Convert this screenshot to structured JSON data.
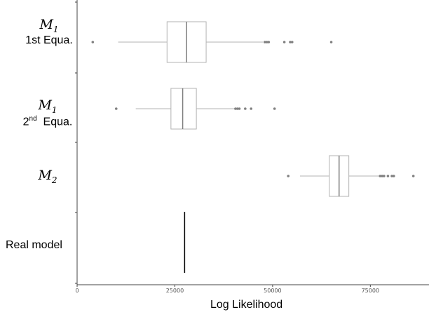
{
  "chart_data": {
    "type": "boxplot",
    "xlabel": "Log Likelihood",
    "xlim": [
      0,
      90000
    ],
    "xticks": [
      0,
      25000,
      50000,
      75000
    ],
    "xtick_labels": [
      "0",
      "25000",
      "50000",
      "75000"
    ],
    "categories": [
      {
        "id": "m1_first",
        "label_main": "M",
        "label_sub": "1",
        "label_line2_pre": "1st Equa.",
        "label_line2_sup": "",
        "label_line2_post": "",
        "box": {
          "q1": 23000,
          "median": 28000,
          "q3": 33000,
          "whisker_low": 10500,
          "whisker_high": 47500
        },
        "outliers": [
          4000,
          48000,
          48500,
          49000,
          53000,
          54500,
          55000,
          65000
        ]
      },
      {
        "id": "m1_second",
        "label_main": "M",
        "label_sub": "1",
        "label_line2_pre": "2",
        "label_line2_sup": "nd",
        "label_line2_post": "  Equa.",
        "box": {
          "q1": 24000,
          "median": 27000,
          "q3": 30500,
          "whisker_low": 15000,
          "whisker_high": 40500
        },
        "outliers": [
          10000,
          40500,
          41000,
          41500,
          43000,
          44500,
          50500
        ]
      },
      {
        "id": "m2",
        "label_main": "M",
        "label_sub": "2",
        "label_line2_pre": "",
        "label_line2_sup": "",
        "label_line2_post": "",
        "box": {
          "q1": 64500,
          "median": 67000,
          "q3": 69500,
          "whisker_low": 57000,
          "whisker_high": 77500
        },
        "outliers": [
          54000,
          77500,
          78000,
          78500,
          79500,
          80500,
          81000,
          86000
        ]
      },
      {
        "id": "real_model",
        "label_text": "Real model",
        "line_value": 27500
      }
    ],
    "colors": {
      "box_stroke": "#b3b3b3",
      "outlier": "#808080",
      "real_line": "#000000",
      "axis": "#444444"
    }
  }
}
